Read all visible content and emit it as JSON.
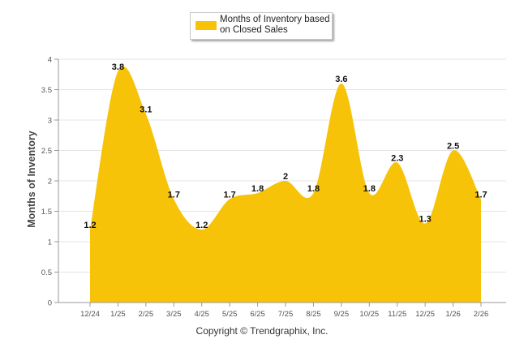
{
  "chart_data": {
    "type": "area",
    "title": "",
    "legend": {
      "label_line1": "Months of Inventory based",
      "label_line2": "on Closed Sales",
      "placement": "top-center"
    },
    "ylabel": "Months of Inventory",
    "xlabel": "",
    "ylim": [
      0,
      4
    ],
    "yticks": [
      "0",
      "0.5",
      "1",
      "1.5",
      "2",
      "2.5",
      "3",
      "3.5",
      "4"
    ],
    "categories": [
      "12/24",
      "1/25",
      "2/25",
      "3/25",
      "4/25",
      "5/25",
      "6/25",
      "7/25",
      "8/25",
      "9/25",
      "10/25",
      "11/25",
      "12/25",
      "1/26",
      "2/26"
    ],
    "values": [
      1.2,
      3.8,
      3.1,
      1.7,
      1.2,
      1.7,
      1.8,
      2.0,
      1.8,
      3.6,
      1.8,
      2.3,
      1.3,
      2.5,
      1.7
    ],
    "value_labels": [
      "1.2",
      "3.8",
      "3.1",
      "1.7",
      "1.2",
      "1.7",
      "1.8",
      "2",
      "1.8",
      "3.6",
      "1.8",
      "2.3",
      "1.3",
      "2.5",
      "1.7"
    ],
    "fill_color": "#F7C308",
    "grid": true
  },
  "credit": "Copyright © Trendgraphix, Inc."
}
